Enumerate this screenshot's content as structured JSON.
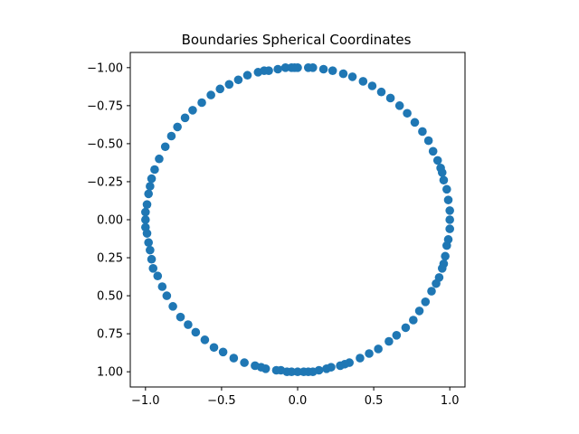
{
  "chart_data": {
    "type": "scatter",
    "title": "Boundaries Spherical Coordinates",
    "xlabel": "",
    "ylabel": "",
    "xlim": [
      -1.1,
      1.1
    ],
    "ylim": [
      1.1,
      -1.1
    ],
    "y_inverted": true,
    "aspect": "equal",
    "grid": false,
    "legend": "none",
    "marker_color": "#1f77b4",
    "x_ticks": [
      -1.0,
      -0.5,
      0.0,
      0.5,
      1.0
    ],
    "x_tick_labels": [
      "−1.0",
      "−0.5",
      "0.0",
      "0.5",
      "1.0"
    ],
    "y_ticks": [
      -1.0,
      -0.75,
      -0.5,
      -0.25,
      0.0,
      0.25,
      0.5,
      0.75,
      1.0
    ],
    "y_tick_labels": [
      "−1.00",
      "−0.75",
      "−0.50",
      "−0.25",
      "0.00",
      "0.25",
      "0.50",
      "0.75",
      "1.00"
    ],
    "series": [
      {
        "x": [
          0.0,
          0.07,
          0.1,
          0.17,
          0.23,
          0.3,
          0.36,
          0.43,
          0.49,
          0.55,
          0.61,
          0.67,
          0.72,
          0.77,
          0.82,
          0.86,
          0.89,
          0.92,
          0.94,
          0.95,
          0.96,
          0.98,
          0.99,
          1.0,
          1.0,
          1.0,
          0.99,
          0.98,
          0.97,
          0.96,
          0.95,
          0.93,
          0.91,
          0.88,
          0.84,
          0.8,
          0.76,
          0.71,
          0.65,
          0.6,
          0.53,
          0.47,
          0.41,
          0.34,
          0.31,
          0.28,
          0.22,
          0.19,
          0.14,
          0.1,
          0.07,
          0.04,
          0.0,
          -0.04,
          -0.07,
          -0.11,
          -0.14,
          -0.21,
          -0.24,
          -0.28,
          -0.35,
          -0.42,
          -0.49,
          -0.55,
          -0.61,
          -0.67,
          -0.72,
          -0.77,
          -0.82,
          -0.86,
          -0.89,
          -0.92,
          -0.95,
          -0.96,
          -0.97,
          -0.98,
          -0.99,
          -1.0,
          -1.0,
          -1.0,
          -0.99,
          -0.98,
          -0.97,
          -0.96,
          -0.94,
          -0.91,
          -0.87,
          -0.83,
          -0.79,
          -0.74,
          -0.69,
          -0.63,
          -0.57,
          -0.51,
          -0.45,
          -0.39,
          -0.33,
          -0.26,
          -0.22,
          -0.19,
          -0.13,
          -0.08,
          -0.04,
          -0.02
        ],
        "y": [
          -1.0,
          -1.0,
          -1.0,
          -0.99,
          -0.98,
          -0.96,
          -0.94,
          -0.91,
          -0.88,
          -0.84,
          -0.8,
          -0.75,
          -0.7,
          -0.64,
          -0.58,
          -0.52,
          -0.45,
          -0.39,
          -0.34,
          -0.31,
          -0.26,
          -0.2,
          -0.13,
          -0.06,
          0.0,
          0.06,
          0.13,
          0.17,
          0.24,
          0.29,
          0.32,
          0.38,
          0.42,
          0.47,
          0.54,
          0.6,
          0.66,
          0.71,
          0.76,
          0.8,
          0.85,
          0.88,
          0.91,
          0.94,
          0.95,
          0.96,
          0.97,
          0.98,
          0.99,
          1.0,
          1.0,
          1.0,
          1.0,
          1.0,
          1.0,
          0.99,
          0.99,
          0.98,
          0.97,
          0.96,
          0.94,
          0.91,
          0.87,
          0.84,
          0.79,
          0.74,
          0.69,
          0.64,
          0.57,
          0.5,
          0.44,
          0.37,
          0.32,
          0.26,
          0.2,
          0.15,
          0.09,
          0.05,
          0.0,
          -0.05,
          -0.1,
          -0.17,
          -0.22,
          -0.27,
          -0.33,
          -0.4,
          -0.48,
          -0.55,
          -0.61,
          -0.67,
          -0.72,
          -0.77,
          -0.82,
          -0.86,
          -0.89,
          -0.92,
          -0.95,
          -0.97,
          -0.98,
          -0.98,
          -0.99,
          -1.0,
          -1.0,
          -1.0
        ]
      }
    ]
  }
}
